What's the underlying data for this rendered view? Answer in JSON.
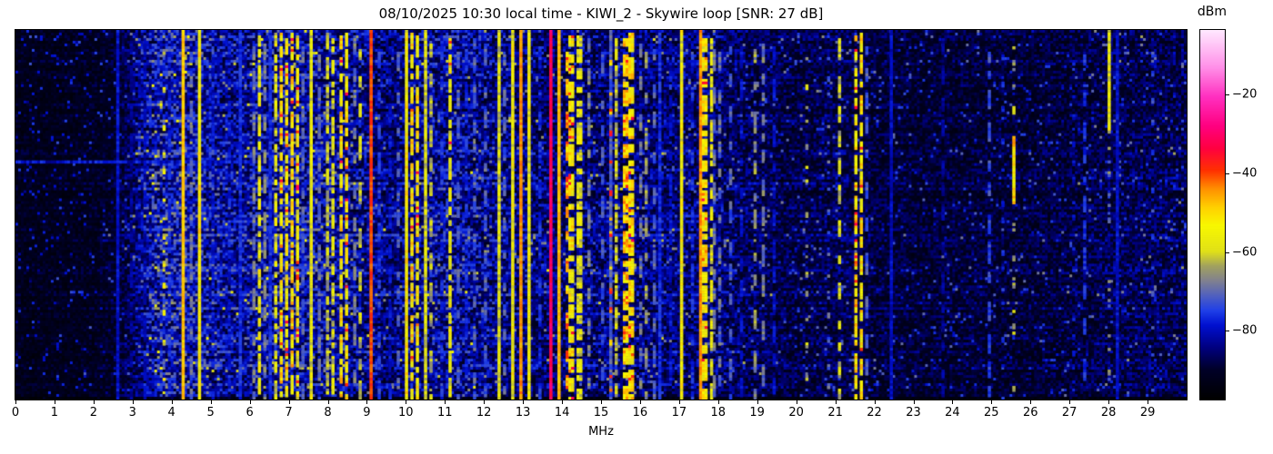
{
  "chart_data": {
    "type": "heatmap",
    "subtype": "radio-spectrogram-waterfall",
    "title": "08/10/2025 10:30 local time - KIWI_2 - Skywire loop [SNR: 27 dB]",
    "xlabel": "MHz",
    "x_range": [
      0,
      30
    ],
    "x_ticks": [
      0,
      1,
      2,
      3,
      4,
      5,
      6,
      7,
      8,
      9,
      10,
      11,
      12,
      13,
      14,
      15,
      16,
      17,
      18,
      19,
      20,
      21,
      22,
      23,
      24,
      25,
      26,
      27,
      28,
      29
    ],
    "x_tick_labels": [
      "0",
      "1",
      "2",
      "3",
      "4",
      "5",
      "6",
      "7",
      "8",
      "9",
      "10",
      "11",
      "12",
      "13",
      "14",
      "15",
      "16",
      "17",
      "18",
      "19",
      "20",
      "21",
      "22",
      "23",
      "24",
      "25",
      "26",
      "27",
      "28",
      "29"
    ],
    "y_axis_note": "time axis, no ticks shown",
    "grid": false,
    "colorbar": {
      "label": "dBm",
      "tick_values": [
        -20,
        -40,
        -60,
        -80
      ],
      "tick_labels": [
        "−20",
        "−40",
        "−60",
        "−80"
      ],
      "value_range_estimate": [
        -97.5,
        -3.5
      ],
      "position": "right"
    },
    "colormap_stops": [
      [
        0.0,
        "#000000"
      ],
      [
        0.08,
        "#000028"
      ],
      [
        0.14,
        "#000080"
      ],
      [
        0.2,
        "#0010d0"
      ],
      [
        0.24,
        "#2040e8"
      ],
      [
        0.28,
        "#5060c0"
      ],
      [
        0.32,
        "#808090"
      ],
      [
        0.36,
        "#a0a060"
      ],
      [
        0.4,
        "#e0e018"
      ],
      [
        0.47,
        "#f8f800"
      ],
      [
        0.52,
        "#ffd000"
      ],
      [
        0.57,
        "#ff9000"
      ],
      [
        0.62,
        "#ff3000"
      ],
      [
        0.68,
        "#ff0040"
      ],
      [
        0.74,
        "#ff0080"
      ],
      [
        0.82,
        "#ff30c0"
      ],
      [
        0.9,
        "#ff90e8"
      ],
      [
        1.0,
        "#ffe8ff"
      ]
    ],
    "noise_floor_profile": [
      [
        0,
        0.055
      ],
      [
        1,
        0.055
      ],
      [
        2,
        0.06
      ],
      [
        2.6,
        0.07
      ],
      [
        3,
        0.11
      ],
      [
        3.4,
        0.16
      ],
      [
        3.8,
        0.185
      ],
      [
        4.3,
        0.18
      ],
      [
        5,
        0.16
      ],
      [
        5.6,
        0.145
      ],
      [
        6,
        0.155
      ],
      [
        6.5,
        0.16
      ],
      [
        7,
        0.16
      ],
      [
        8,
        0.155
      ],
      [
        9,
        0.14
      ],
      [
        9.6,
        0.125
      ],
      [
        10,
        0.135
      ],
      [
        11,
        0.15
      ],
      [
        12,
        0.14
      ],
      [
        13,
        0.125
      ],
      [
        14,
        0.12
      ],
      [
        15,
        0.125
      ],
      [
        16,
        0.12
      ],
      [
        17,
        0.125
      ],
      [
        18,
        0.115
      ],
      [
        19,
        0.105
      ],
      [
        20,
        0.09
      ],
      [
        21,
        0.1
      ],
      [
        22,
        0.085
      ],
      [
        23,
        0.08
      ],
      [
        24,
        0.08
      ],
      [
        25,
        0.082
      ],
      [
        26,
        0.08
      ],
      [
        27,
        0.088
      ],
      [
        28,
        0.095
      ],
      [
        29,
        0.1
      ],
      [
        30,
        0.1
      ]
    ],
    "bands_key": "[freq_MHz, width_MHz, intensity_0to1, style(s=solid,p=patchy,d=dashed,o=dotted,g=segment), seg_y0, seg_y1]",
    "bands": [
      [
        2.61,
        0.04,
        0.21,
        "s"
      ],
      [
        2.95,
        0.04,
        0.17,
        "d"
      ],
      [
        3.3,
        0.04,
        0.19,
        "d"
      ],
      [
        3.77,
        0.06,
        0.47,
        "o"
      ],
      [
        3.95,
        0.04,
        0.24,
        "d"
      ],
      [
        4.28,
        0.04,
        0.54,
        "s"
      ],
      [
        4.5,
        0.04,
        0.32,
        "d"
      ],
      [
        4.66,
        0.04,
        0.5,
        "s"
      ],
      [
        5.05,
        0.04,
        0.21,
        "d"
      ],
      [
        5.45,
        0.04,
        0.22,
        "d"
      ],
      [
        5.75,
        0.05,
        0.24,
        "s"
      ],
      [
        6.07,
        0.04,
        0.33,
        "d"
      ],
      [
        6.2,
        0.05,
        0.47,
        "p"
      ],
      [
        6.35,
        0.04,
        0.34,
        "d"
      ],
      [
        6.5,
        0.05,
        0.24,
        "s"
      ],
      [
        6.65,
        0.06,
        0.46,
        "p"
      ],
      [
        6.8,
        0.1,
        0.52,
        "p"
      ],
      [
        6.95,
        0.08,
        0.49,
        "p"
      ],
      [
        7.08,
        0.12,
        0.53,
        "p"
      ],
      [
        7.22,
        0.07,
        0.48,
        "p"
      ],
      [
        7.38,
        0.05,
        0.3,
        "d"
      ],
      [
        7.57,
        0.04,
        0.46,
        "s"
      ],
      [
        7.8,
        0.05,
        0.32,
        "d"
      ],
      [
        7.97,
        0.05,
        0.41,
        "p"
      ],
      [
        8.12,
        0.05,
        0.45,
        "p"
      ],
      [
        8.33,
        0.1,
        0.52,
        "p"
      ],
      [
        8.48,
        0.08,
        0.5,
        "p"
      ],
      [
        8.66,
        0.04,
        0.33,
        "d"
      ],
      [
        8.82,
        0.04,
        0.42,
        "d"
      ],
      [
        9.1,
        0.04,
        0.63,
        "s"
      ],
      [
        9.3,
        0.04,
        0.26,
        "d"
      ],
      [
        9.55,
        0.04,
        0.21,
        "d"
      ],
      [
        9.78,
        0.04,
        0.3,
        "d"
      ],
      [
        10.0,
        0.04,
        0.5,
        "s"
      ],
      [
        10.15,
        0.1,
        0.52,
        "p"
      ],
      [
        10.3,
        0.08,
        0.5,
        "p"
      ],
      [
        10.48,
        0.04,
        0.45,
        "s"
      ],
      [
        10.62,
        0.04,
        0.4,
        "d"
      ],
      [
        10.9,
        0.04,
        0.24,
        "d"
      ],
      [
        11.09,
        0.05,
        0.48,
        "p"
      ],
      [
        11.3,
        0.04,
        0.3,
        "d"
      ],
      [
        11.55,
        0.04,
        0.24,
        "d"
      ],
      [
        11.78,
        0.05,
        0.3,
        "d"
      ],
      [
        12.02,
        0.04,
        0.3,
        "d"
      ],
      [
        12.34,
        0.04,
        0.44,
        "s"
      ],
      [
        12.53,
        0.04,
        0.3,
        "d"
      ],
      [
        12.72,
        0.04,
        0.48,
        "s"
      ],
      [
        12.93,
        0.04,
        0.58,
        "s"
      ],
      [
        13.16,
        0.04,
        0.47,
        "s"
      ],
      [
        13.42,
        0.04,
        0.24,
        "d"
      ],
      [
        13.67,
        0.05,
        0.72,
        "s"
      ],
      [
        13.93,
        0.04,
        0.55,
        "s"
      ],
      [
        14.1,
        0.05,
        0.6,
        "d"
      ],
      [
        14.25,
        0.12,
        0.5,
        "p"
      ],
      [
        14.45,
        0.09,
        0.46,
        "p"
      ],
      [
        14.65,
        0.05,
        0.34,
        "d"
      ],
      [
        15.0,
        0.04,
        0.29,
        "d"
      ],
      [
        15.22,
        0.03,
        0.3,
        "s"
      ],
      [
        15.2,
        0.05,
        0.62,
        "o"
      ],
      [
        15.4,
        0.06,
        0.41,
        "p"
      ],
      [
        15.6,
        0.14,
        0.55,
        "p"
      ],
      [
        15.77,
        0.1,
        0.52,
        "p"
      ],
      [
        15.97,
        0.05,
        0.33,
        "d"
      ],
      [
        16.15,
        0.06,
        0.36,
        "d"
      ],
      [
        16.33,
        0.04,
        0.3,
        "d"
      ],
      [
        16.52,
        0.05,
        0.24,
        "s"
      ],
      [
        16.78,
        0.04,
        0.21,
        "d"
      ],
      [
        17.03,
        0.04,
        0.48,
        "s"
      ],
      [
        17.3,
        0.04,
        0.24,
        "d"
      ],
      [
        17.52,
        0.06,
        0.58,
        "s"
      ],
      [
        17.65,
        0.09,
        0.5,
        "p"
      ],
      [
        17.8,
        0.07,
        0.46,
        "p"
      ],
      [
        17.9,
        0.04,
        0.33,
        "d"
      ],
      [
        18.05,
        0.04,
        0.32,
        "d"
      ],
      [
        18.3,
        0.05,
        0.29,
        "d"
      ],
      [
        18.6,
        0.04,
        0.21,
        "d"
      ],
      [
        18.95,
        0.05,
        0.36,
        "d"
      ],
      [
        19.12,
        0.05,
        0.33,
        "d"
      ],
      [
        19.42,
        0.04,
        0.21,
        "d"
      ],
      [
        20.25,
        0.05,
        0.4,
        "o"
      ],
      [
        20.8,
        0.04,
        0.3,
        "o"
      ],
      [
        21.1,
        0.04,
        0.42,
        "d"
      ],
      [
        21.52,
        0.06,
        0.51,
        "p"
      ],
      [
        21.64,
        0.06,
        0.52,
        "p"
      ],
      [
        21.8,
        0.04,
        0.29,
        "d"
      ],
      [
        22.45,
        0.04,
        0.2,
        "s"
      ],
      [
        23.75,
        0.04,
        0.17,
        "d"
      ],
      [
        24.9,
        0.04,
        0.27,
        "d"
      ],
      [
        25.3,
        0.04,
        0.24,
        "o"
      ],
      [
        25.55,
        0.05,
        0.54,
        "g",
        0.28,
        0.47
      ],
      [
        27.1,
        0.04,
        0.21,
        "o"
      ],
      [
        27.35,
        0.05,
        0.24,
        "d"
      ],
      [
        28.02,
        0.04,
        0.47,
        "g",
        0.0,
        0.27
      ],
      [
        28.2,
        0.04,
        0.21,
        "s"
      ],
      [
        29.1,
        0.05,
        0.27,
        "o"
      ]
    ],
    "h_streaks_key": "[y_fraction, f0_MHz, f1_MHz, intensity]",
    "h_streaks": [
      [
        0.355,
        0.0,
        7.2,
        0.2
      ],
      [
        0.1,
        14.3,
        18.3,
        0.16
      ]
    ],
    "render_grid": {
      "cols": 430,
      "rows": 136,
      "seed": 42
    }
  }
}
